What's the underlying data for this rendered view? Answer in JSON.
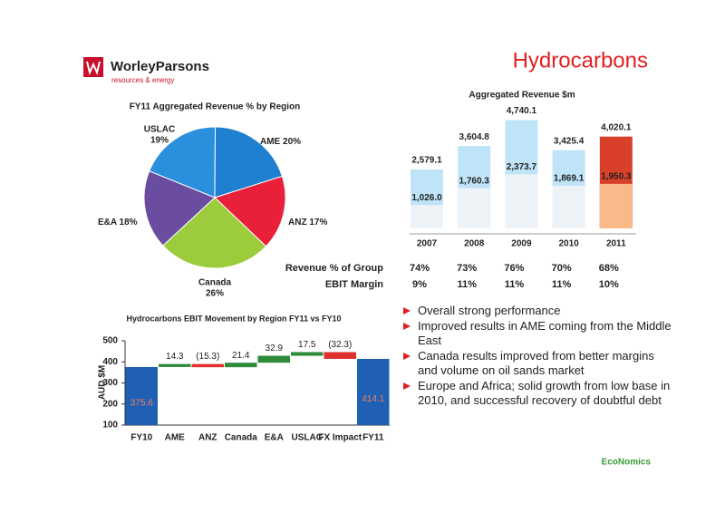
{
  "header": {
    "brand": "WorleyParsons",
    "tagline": "resources & energy",
    "title": "Hydrocarbons"
  },
  "chart_data": [
    {
      "type": "pie",
      "title": "FY11 Aggregated Revenue % by Region",
      "categories": [
        "USLAC",
        "AME",
        "ANZ",
        "Canada",
        "E&A"
      ],
      "values": [
        19,
        20,
        17,
        26,
        18
      ],
      "value_labels": [
        "19%",
        "20%",
        "17%",
        "26%",
        "18%"
      ],
      "colors": [
        "#2a8fdc",
        "#1f7fd0",
        "#e8203a",
        "#9ccc3c",
        "#6a4ca0"
      ]
    },
    {
      "type": "bar",
      "title": "Aggregated Revenue $m",
      "categories": [
        "2007",
        "2008",
        "2009",
        "2010",
        "2011"
      ],
      "series": [
        {
          "values": [
            2579.1,
            3604.8,
            4740.1,
            3425.4,
            4020.1
          ],
          "value_labels": [
            "2,579.1",
            "3,604.8",
            "4,740.1",
            "3,425.4",
            "4,020.1"
          ],
          "colors": [
            "#bfe3f7",
            "#bfe3f7",
            "#bfe3f7",
            "#bfe3f7",
            "#d9402a"
          ]
        },
        {
          "values": [
            1026.0,
            1760.3,
            2373.7,
            1869.1,
            1950.3
          ],
          "value_labels": [
            "1,026.0",
            "1,760.3",
            "2,373.7",
            "1,869.1",
            "1,950.3"
          ],
          "colors": [
            "#eef3f8",
            "#eef3f8",
            "#eef3f8",
            "#eef3f8",
            "#f9b98a"
          ]
        }
      ],
      "ylim": [
        0,
        5000
      ],
      "rows": [
        {
          "label": "Revenue % of Group",
          "values": [
            "74%",
            "73%",
            "76%",
            "70%",
            "68%"
          ]
        },
        {
          "label": "EBIT Margin",
          "values": [
            "9%",
            "11%",
            "11%",
            "11%",
            "10%"
          ]
        }
      ]
    },
    {
      "type": "waterfall",
      "title": "Hydrocarbons EBIT Movement by Region FY11 vs FY10",
      "y_label": "AUD $M",
      "categories": [
        "FY10",
        "AME",
        "ANZ",
        "Canada",
        "E&A",
        "USLAC",
        "FX Impact",
        "FY11"
      ],
      "values": [
        375.6,
        14.3,
        -15.3,
        21.4,
        32.9,
        17.5,
        -32.3,
        414.1
      ],
      "value_labels": [
        "375.6",
        "14.3",
        "(15.3)",
        "21.4",
        "32.9",
        "17.5",
        "(32.3)",
        "414.1"
      ],
      "colors": [
        "#1f5fb4",
        "#2e8b3a",
        "#e03030",
        "#2e8b3a",
        "#2e8b3a",
        "#2e8b3a",
        "#e03030",
        "#1f5fb4"
      ],
      "ylim": [
        100,
        500
      ],
      "yticks": [
        100,
        200,
        300,
        400,
        500
      ]
    }
  ],
  "bullets": [
    "Overall strong performance",
    "Improved results in AME coming from the Middle East",
    "Canada results improved from better margins and volume on oil sands market",
    "Europe and Africa; solid growth from low base in 2010, and successful recovery of doubtful debt"
  ],
  "footer": "EcoNomics"
}
